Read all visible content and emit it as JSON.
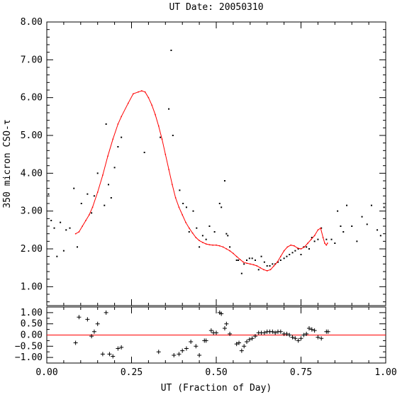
{
  "chart_data": [
    {
      "type": "scatter",
      "panel": "main",
      "title": "UT Date: 20050310",
      "ylabel": "350 micron CSO-τ",
      "xlim": [
        0,
        1
      ],
      "ylim": [
        0.5,
        8.0
      ],
      "yticks": [
        1.0,
        2.0,
        3.0,
        4.0,
        5.0,
        6.0,
        7.0,
        8.0
      ],
      "ytick_labels": [
        "1.00",
        "2.00",
        "3.00",
        "4.00",
        "5.00",
        "6.00",
        "7.00",
        "8.00"
      ],
      "series": [
        {
          "kind": "points",
          "color": "#000000",
          "x": [
            0.005,
            0.013,
            0.022,
            0.03,
            0.04,
            0.05,
            0.057,
            0.068,
            0.08,
            0.09,
            0.102,
            0.12,
            0.132,
            0.14,
            0.15,
            0.17,
            0.175,
            0.182,
            0.19,
            0.2,
            0.21,
            0.22,
            0.288,
            0.335,
            0.36,
            0.367,
            0.372,
            0.392,
            0.402,
            0.412,
            0.42,
            0.432,
            0.442,
            0.45,
            0.46,
            0.47,
            0.48,
            0.495,
            0.51,
            0.515,
            0.525,
            0.53,
            0.534,
            0.54,
            0.56,
            0.565,
            0.575,
            0.582,
            0.59,
            0.598,
            0.606,
            0.615,
            0.625,
            0.633,
            0.642,
            0.65,
            0.658,
            0.666,
            0.674,
            0.682,
            0.69,
            0.7,
            0.708,
            0.716,
            0.725,
            0.733,
            0.742,
            0.75,
            0.758,
            0.766,
            0.774,
            0.782,
            0.79,
            0.8,
            0.81,
            0.825,
            0.84,
            0.85,
            0.858,
            0.867,
            0.875,
            0.885,
            0.9,
            0.915,
            0.93,
            0.945,
            0.958,
            0.975,
            0.985,
            0.995
          ],
          "y": [
            3.45,
            2.75,
            2.55,
            1.8,
            2.7,
            1.95,
            2.5,
            2.55,
            3.6,
            2.05,
            3.2,
            3.45,
            2.95,
            3.4,
            4.0,
            3.15,
            5.3,
            3.7,
            3.35,
            4.15,
            4.7,
            4.95,
            4.55,
            4.95,
            5.7,
            7.25,
            5.0,
            3.55,
            3.2,
            3.1,
            2.45,
            3.0,
            2.55,
            2.05,
            2.35,
            2.25,
            2.6,
            2.45,
            3.2,
            3.1,
            3.8,
            2.4,
            2.35,
            2.05,
            1.7,
            1.7,
            1.35,
            1.6,
            1.7,
            1.75,
            1.75,
            1.7,
            1.45,
            1.8,
            1.65,
            1.55,
            1.55,
            1.6,
            1.6,
            1.65,
            1.7,
            1.75,
            1.8,
            1.85,
            1.9,
            1.95,
            2.0,
            1.85,
            2.05,
            2.05,
            2.0,
            2.3,
            2.2,
            2.25,
            2.55,
            2.25,
            2.25,
            2.15,
            3.0,
            2.6,
            2.45,
            3.15,
            2.6,
            2.2,
            2.85,
            2.65,
            3.15,
            2.5,
            2.35,
            3.1
          ]
        },
        {
          "kind": "line",
          "color": "#ff0000",
          "x": [
            0.085,
            0.095,
            0.105,
            0.115,
            0.125,
            0.135,
            0.15,
            0.165,
            0.18,
            0.195,
            0.21,
            0.22,
            0.24,
            0.255,
            0.27,
            0.28,
            0.29,
            0.3,
            0.31,
            0.32,
            0.33,
            0.34,
            0.35,
            0.36,
            0.37,
            0.38,
            0.39,
            0.4,
            0.41,
            0.42,
            0.43,
            0.44,
            0.45,
            0.46,
            0.47,
            0.48,
            0.49,
            0.5,
            0.51,
            0.52,
            0.53,
            0.54,
            0.55,
            0.56,
            0.57,
            0.58,
            0.59,
            0.6,
            0.61,
            0.62,
            0.63,
            0.64,
            0.65,
            0.66,
            0.67,
            0.68,
            0.69,
            0.7,
            0.71,
            0.72,
            0.73,
            0.74,
            0.75,
            0.76,
            0.77,
            0.78,
            0.79,
            0.8,
            0.808,
            0.815,
            0.82,
            0.825,
            0.828
          ],
          "y": [
            2.4,
            2.45,
            2.6,
            2.75,
            2.9,
            3.1,
            3.5,
            3.95,
            4.45,
            4.9,
            5.3,
            5.5,
            5.85,
            6.1,
            6.15,
            6.18,
            6.15,
            6.0,
            5.8,
            5.55,
            5.25,
            4.9,
            4.5,
            4.1,
            3.7,
            3.35,
            3.1,
            2.9,
            2.7,
            2.55,
            2.42,
            2.3,
            2.22,
            2.17,
            2.13,
            2.11,
            2.1,
            2.1,
            2.08,
            2.05,
            2.0,
            1.95,
            1.88,
            1.8,
            1.72,
            1.65,
            1.62,
            1.6,
            1.58,
            1.55,
            1.5,
            1.45,
            1.42,
            1.45,
            1.55,
            1.65,
            1.8,
            1.95,
            2.05,
            2.1,
            2.08,
            2.02,
            2.0,
            2.05,
            2.15,
            2.25,
            2.35,
            2.5,
            2.55,
            2.3,
            2.15,
            2.1,
            2.15
          ]
        }
      ]
    },
    {
      "type": "scatter",
      "panel": "residuals",
      "xlabel": "UT (Fraction of Day)",
      "xlim": [
        0,
        1
      ],
      "ylim": [
        -1.25,
        1.25
      ],
      "yticks": [
        -1.0,
        -0.5,
        0.0,
        0.5,
        1.0
      ],
      "ytick_labels": [
        "−1.00",
        "−0.50",
        "0.00",
        "0.50",
        "1.00"
      ],
      "xticks": [
        0.0,
        0.25,
        0.5,
        0.75,
        1.0
      ],
      "xtick_labels": [
        "0.00",
        "0.25",
        "0.50",
        "0.75",
        "1.00"
      ],
      "zero_line_color": "#ff0000",
      "series": [
        {
          "kind": "plus",
          "color": "#000000",
          "x": [
            0.085,
            0.095,
            0.12,
            0.132,
            0.14,
            0.15,
            0.165,
            0.175,
            0.185,
            0.195,
            0.21,
            0.22,
            0.33,
            0.375,
            0.39,
            0.4,
            0.412,
            0.425,
            0.44,
            0.45,
            0.465,
            0.47,
            0.485,
            0.492,
            0.5,
            0.51,
            0.515,
            0.525,
            0.53,
            0.54,
            0.56,
            0.567,
            0.575,
            0.582,
            0.59,
            0.598,
            0.606,
            0.615,
            0.625,
            0.633,
            0.642,
            0.65,
            0.658,
            0.666,
            0.674,
            0.682,
            0.69,
            0.7,
            0.708,
            0.716,
            0.725,
            0.733,
            0.742,
            0.75,
            0.758,
            0.766,
            0.774,
            0.782,
            0.79,
            0.8,
            0.81,
            0.825,
            0.83
          ],
          "y": [
            -0.35,
            0.8,
            0.7,
            -0.05,
            0.15,
            0.5,
            -0.85,
            1.0,
            -0.85,
            -0.95,
            -0.6,
            -0.55,
            -0.75,
            -0.9,
            -0.85,
            -0.7,
            -0.6,
            -0.3,
            -0.5,
            -0.9,
            -0.25,
            -0.25,
            0.2,
            0.1,
            0.1,
            1.0,
            0.95,
            0.3,
            0.5,
            0.05,
            -0.4,
            -0.35,
            -0.7,
            -0.5,
            -0.3,
            -0.2,
            -0.15,
            -0.05,
            0.1,
            0.1,
            0.1,
            0.15,
            0.15,
            0.15,
            0.1,
            0.15,
            0.15,
            0.05,
            0.05,
            0.0,
            -0.1,
            -0.15,
            -0.25,
            -0.15,
            0.0,
            0.05,
            0.3,
            0.25,
            0.2,
            -0.1,
            -0.15,
            0.15,
            0.15
          ]
        }
      ]
    }
  ]
}
